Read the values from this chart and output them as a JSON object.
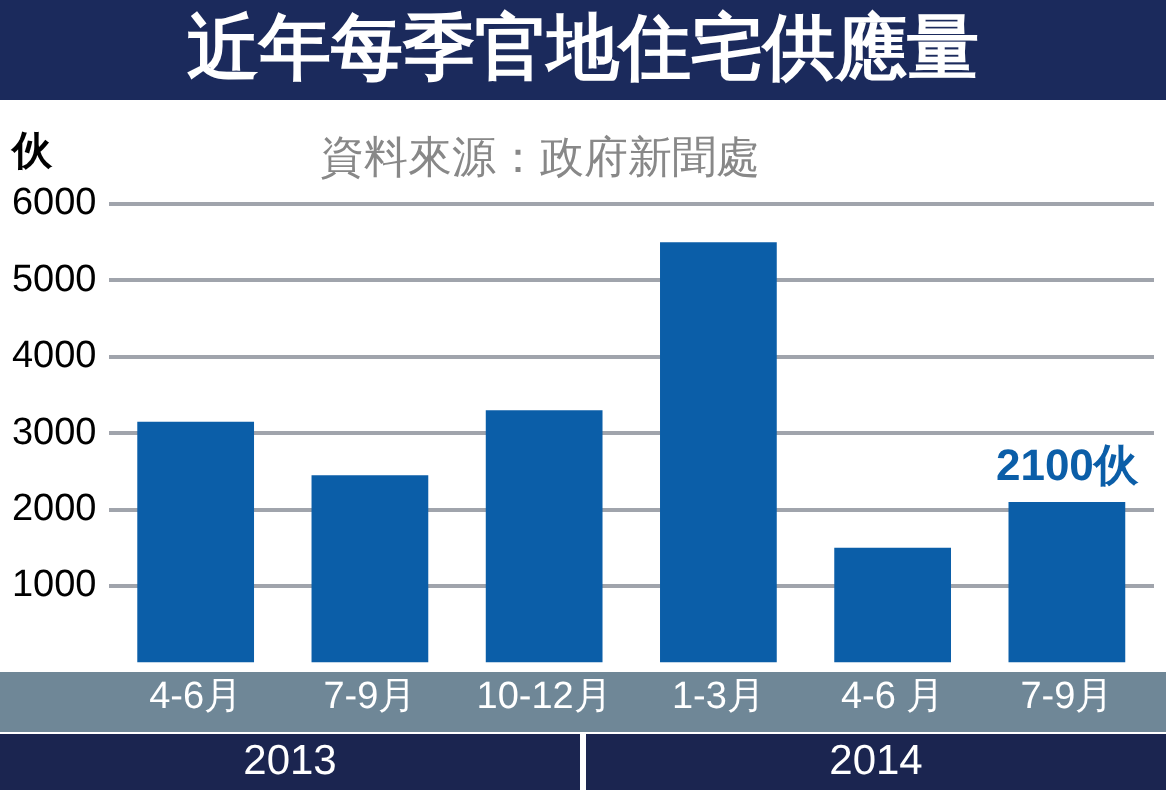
{
  "chart_data": {
    "type": "bar",
    "title": "近年每季官地住宅供應量",
    "ylabel": "伙",
    "annotations": [
      "資料來源：政府新聞處",
      "2013",
      "2014"
    ],
    "categories": [
      "4-6月",
      "7-9月",
      "10-12月",
      "1-3月",
      "4-6 月",
      "7-9月"
    ],
    "values": [
      3150,
      2450,
      3300,
      5500,
      1500,
      2100
    ],
    "value_labels": [
      null,
      null,
      null,
      null,
      null,
      "2100伙"
    ],
    "color": "#0b5ea8",
    "ylim": [
      0,
      6000
    ],
    "yticks": [
      1000,
      2000,
      3000,
      4000,
      5000,
      6000
    ],
    "grid": "y",
    "legend": false
  }
}
